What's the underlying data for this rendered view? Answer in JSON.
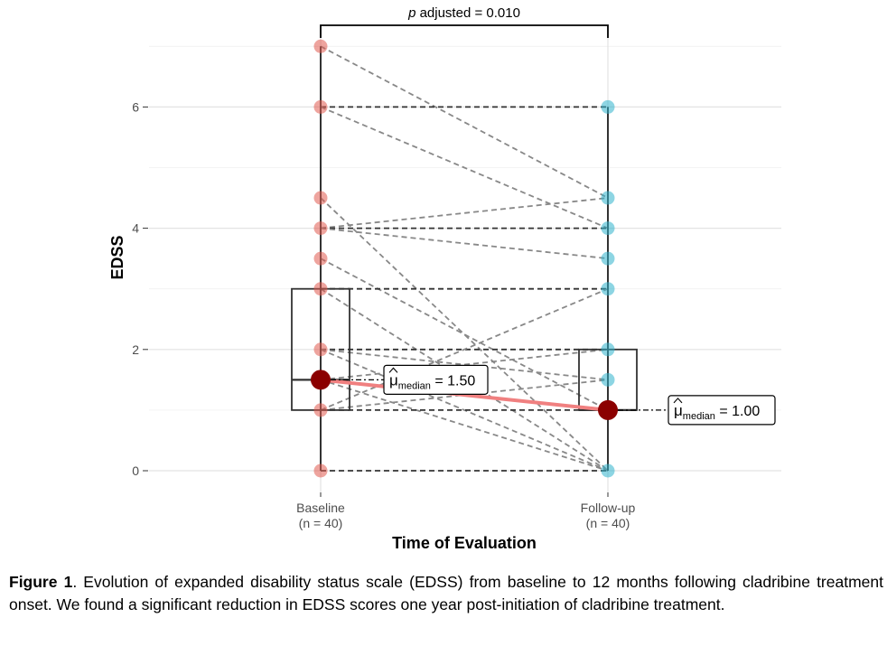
{
  "chart_data": {
    "type": "scatter",
    "subtype": "paired-boxplot",
    "ylabel": "EDSS",
    "xlabel": "Time of Evaluation",
    "yticks": [
      0,
      2,
      4,
      6
    ],
    "ylim": [
      -0.3,
      7.35
    ],
    "grid": true,
    "categories": [
      {
        "label": "Baseline",
        "n_label": "(n = 40)",
        "color": "#e05a4e"
      },
      {
        "label": "Follow-up",
        "n_label": "(n = 40)",
        "color": "#2fb3cc"
      }
    ],
    "baseline_values": [
      0,
      1,
      1.5,
      2,
      3,
      3.5,
      4,
      4.5,
      6,
      7
    ],
    "followup_values": [
      0,
      1,
      1.5,
      2,
      3,
      3.5,
      4,
      4.5,
      6
    ],
    "pairs": [
      [
        7,
        4.5
      ],
      [
        6,
        6
      ],
      [
        6,
        4
      ],
      [
        4.5,
        0
      ],
      [
        4,
        4.5
      ],
      [
        4,
        4
      ],
      [
        4,
        3.5
      ],
      [
        3.5,
        1
      ],
      [
        3,
        3
      ],
      [
        3,
        0
      ],
      [
        2,
        2
      ],
      [
        2,
        0
      ],
      [
        2,
        1.5
      ],
      [
        1.5,
        2
      ],
      [
        1.5,
        0
      ],
      [
        1,
        1
      ],
      [
        1,
        1.5
      ],
      [
        1,
        3
      ],
      [
        0,
        0
      ]
    ],
    "boxes": [
      {
        "q1": 1,
        "median": 1.5,
        "q3": 3,
        "min": 0,
        "max": 7
      },
      {
        "q1": 1,
        "median": 1,
        "q3": 2,
        "min": 0,
        "max": 6
      }
    ],
    "medians": [
      1.5,
      1.0
    ],
    "median_labels": [
      {
        "prefix": "μ",
        "sub": "median",
        "value": "= 1.50"
      },
      {
        "prefix": "μ",
        "sub": "median",
        "value": "= 1.00"
      }
    ],
    "bracket": {
      "p_label": "p",
      "label_rest": " adjusted = 0.010"
    },
    "median_line_color": "#f08080",
    "median_point_color": "#8b0000"
  },
  "caption": {
    "label": "Figure 1",
    "text": ". Evolution of expanded disability status scale (EDSS) from baseline to 12 months following cladribine treatment onset. We found a significant reduction in EDSS scores one year post-initiation of cladribine treatment."
  }
}
